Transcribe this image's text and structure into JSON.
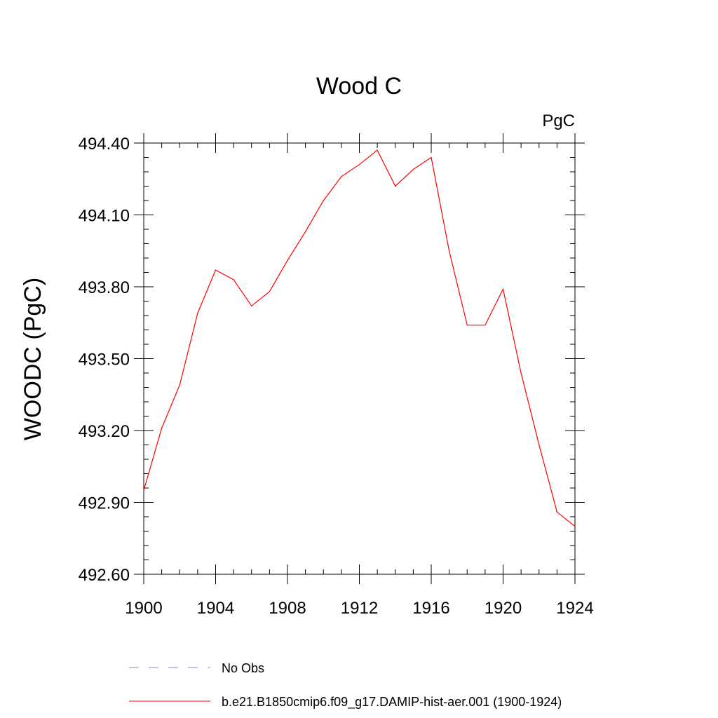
{
  "chart_data": {
    "type": "line",
    "title": "Wood C",
    "units_label": "PgC",
    "ylabel": "WOODC  (PgC)",
    "xlabel": "",
    "xlim": [
      1900,
      1924
    ],
    "ylim": [
      492.6,
      494.4
    ],
    "x_ticks": [
      1900,
      1904,
      1908,
      1912,
      1916,
      1920,
      1924
    ],
    "y_ticks": [
      "492.60",
      "492.90",
      "493.20",
      "493.50",
      "493.80",
      "494.10",
      "494.40"
    ],
    "grid": false,
    "legend_position": "bottom",
    "series": [
      {
        "name": "b.e21.B1850cmip6.f09_g17.DAMIP-hist-aer.001 (1900-1924)",
        "color": "#ff0000",
        "x": [
          1900,
          1901,
          1902,
          1903,
          1904,
          1905,
          1906,
          1907,
          1908,
          1909,
          1910,
          1911,
          1912,
          1913,
          1914,
          1915,
          1916,
          1917,
          1918,
          1919,
          1920,
          1921,
          1922,
          1923,
          1924
        ],
        "y": [
          492.95,
          493.21,
          493.39,
          493.69,
          493.87,
          493.83,
          493.72,
          493.78,
          493.91,
          494.03,
          494.16,
          494.26,
          494.31,
          494.37,
          494.22,
          494.29,
          494.34,
          493.95,
          493.64,
          493.64,
          493.79,
          493.44,
          493.14,
          492.86,
          492.8
        ]
      }
    ],
    "legend": [
      {
        "label": "No Obs",
        "color": "#8a86c8",
        "dash": true
      },
      {
        "label": "b.e21.B1850cmip6.f09_g17.DAMIP-hist-aer.001 (1900-1924)",
        "color": "#ff0000",
        "dash": false
      }
    ]
  }
}
